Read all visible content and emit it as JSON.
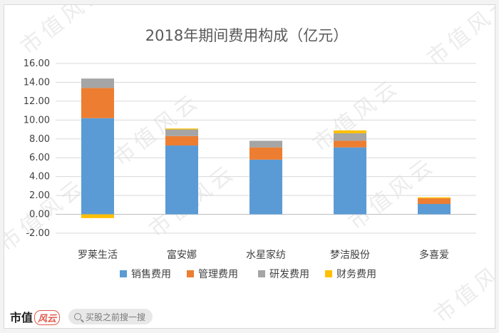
{
  "chart_data": {
    "type": "bar",
    "stacked": true,
    "title": "2018年期间费用构成（亿元）",
    "categories": [
      "罗莱生活",
      "富安娜",
      "水星家纺",
      "梦洁股份",
      "多喜爱"
    ],
    "series": [
      {
        "name": "销售费用",
        "color": "#5b9bd5",
        "values": [
          10.2,
          7.3,
          5.8,
          7.1,
          1.1
        ]
      },
      {
        "name": "管理费用",
        "color": "#ed7d31",
        "values": [
          3.2,
          1.0,
          1.3,
          0.7,
          0.6
        ]
      },
      {
        "name": "研发费用",
        "color": "#a5a5a5",
        "values": [
          1.0,
          0.7,
          0.7,
          0.8,
          0.0
        ]
      },
      {
        "name": "财务费用",
        "color": "#ffc000",
        "values": [
          -0.4,
          0.1,
          0.0,
          0.3,
          0.1
        ]
      }
    ],
    "ylim": [
      -2,
      16
    ],
    "yticks": [
      -2,
      0,
      2,
      4,
      6,
      8,
      10,
      12,
      14,
      16
    ],
    "ytick_labels": [
      "-2.00",
      "0.00",
      "2.00",
      "4.00",
      "6.00",
      "8.00",
      "10.00",
      "12.00",
      "14.00",
      "16.00"
    ],
    "grid": true,
    "legend": "bottom"
  },
  "watermark_text": "市值风云",
  "footer": {
    "brand": "市值",
    "brand_accent": "风云",
    "search_placeholder": "买股之前搜一搜"
  },
  "colors": {
    "grid": "#d9d9d9",
    "axis": "#bfbfbf"
  }
}
